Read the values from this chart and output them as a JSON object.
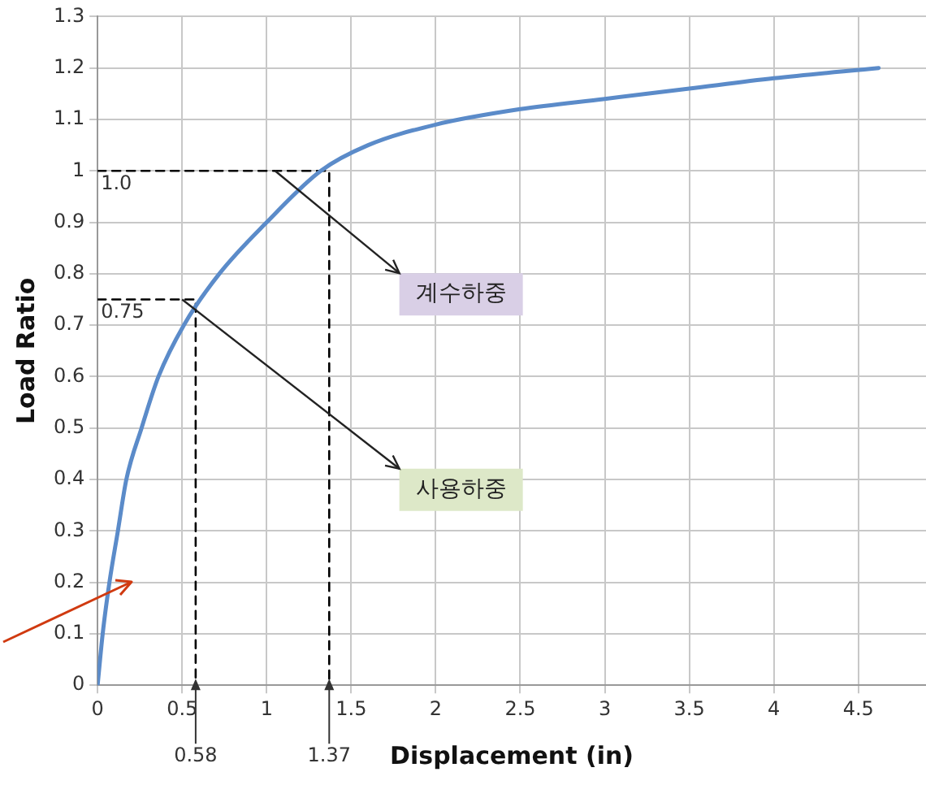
{
  "chart_data": {
    "type": "line",
    "xlabel": "Displacement (in)",
    "ylabel": "Load Ratio",
    "xlim": [
      0,
      4.9
    ],
    "xticks": [
      0,
      0.5,
      1,
      1.5,
      2,
      2.5,
      3,
      3.5,
      4,
      4.5
    ],
    "ylim": [
      0,
      1.3
    ],
    "yticks": [
      0,
      0.1,
      0.2,
      0.3,
      0.4,
      0.5,
      0.6,
      0.7,
      0.8,
      0.9,
      1,
      1.1,
      1.2,
      1.3
    ],
    "grid": true,
    "legend": false,
    "marker": "none",
    "series": [
      {
        "color": "#5b8bc9",
        "x": [
          0,
          0.03,
          0.07,
          0.12,
          0.17,
          0.26,
          0.36,
          0.51,
          0.72,
          1.0,
          1.32,
          1.6,
          2,
          2.5,
          3,
          3.5,
          4,
          4.62
        ],
        "values": [
          0,
          0.1,
          0.2,
          0.3,
          0.4,
          0.5,
          0.6,
          0.7,
          0.8,
          0.9,
          1,
          1.05,
          1.09,
          1.12,
          1.14,
          1.16,
          1.18,
          1.2
        ]
      },
      {
        "color": "#000000",
        "line_style": "dashed",
        "x": [
          0,
          1.37,
          1.37
        ],
        "values": [
          1,
          1,
          0
        ]
      },
      {
        "color": "#000000",
        "line_style": "dashed",
        "x": [
          0,
          0.58,
          0.58
        ],
        "values": [
          0.75,
          0.75,
          0
        ]
      }
    ],
    "annotations": [
      {
        "text": "1.0",
        "x": 0,
        "y": 1
      },
      {
        "text": "0.75",
        "x": 0,
        "y": 0.75
      },
      {
        "text": "0.58",
        "x": 0.58,
        "y": 0
      },
      {
        "text": "1.37",
        "x": 1.37,
        "y": 0
      },
      {
        "text": "계수하중",
        "x": 1.05,
        "y": 1.0
      },
      {
        "text": "사용하중",
        "x": 0.5,
        "y": 0.75
      }
    ]
  }
}
